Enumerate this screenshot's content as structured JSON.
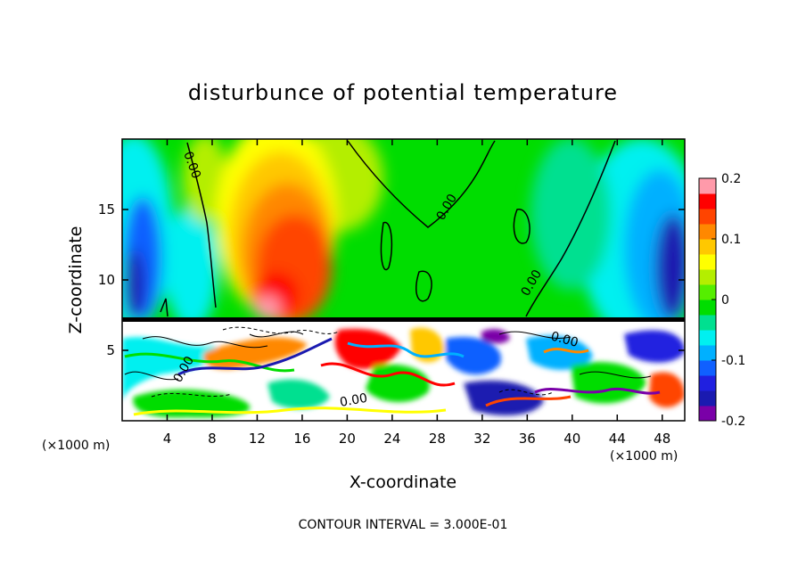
{
  "chart_data": {
    "type": "heatmap",
    "title": "disturbunce of potential temperature",
    "xlabel": "X-coordinate",
    "ylabel": "Z-coordinate",
    "x_unit_left": "(×1000 m)",
    "x_unit_right": "(×1000 m)",
    "xlim": [
      0,
      50
    ],
    "ylim": [
      0,
      20
    ],
    "x_ticks": [
      4,
      8,
      12,
      16,
      20,
      24,
      28,
      32,
      36,
      40,
      44,
      48
    ],
    "y_ticks": [
      5,
      10,
      15
    ],
    "contour_labels": [
      "0.00",
      "0.00",
      "0.00",
      "0.00",
      "0.00",
      "0.00"
    ],
    "footer": "CONTOUR INTERVAL = 3.000E-01",
    "colorbar": {
      "min": -0.2,
      "max": 0.2,
      "tick_labels": [
        "0.2",
        "0.1",
        "0",
        "-0.1",
        "-0.2"
      ],
      "tick_values": [
        0.2,
        0.1,
        0,
        -0.1,
        -0.2
      ],
      "colors": [
        "#7a00a8",
        "#1a1ab0",
        "#2020e0",
        "#1060ff",
        "#00b0ff",
        "#00f0f0",
        "#00e090",
        "#00dd00",
        "#55ee00",
        "#b4ee00",
        "#ffff00",
        "#ffc800",
        "#ff8800",
        "#ff4400",
        "#ff0000",
        "#ff9aaa"
      ]
    }
  }
}
